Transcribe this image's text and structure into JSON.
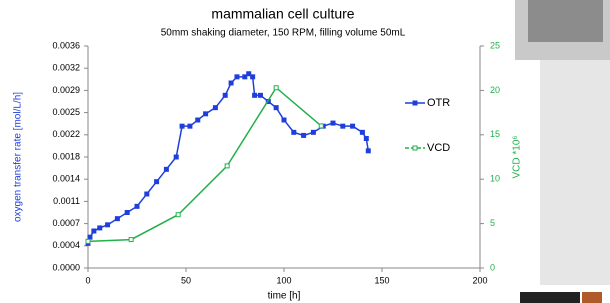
{
  "chart_data": {
    "type": "line",
    "title": "mammalian cell culture",
    "subtitle": "50mm shaking diameter, 150 RPM, filling volume 50mL",
    "x_label": "time [h]",
    "y_label": "oxygen transfer rate  [mol/L/h]",
    "y2_label": "VCD *10⁶",
    "xlim": [
      0,
      200
    ],
    "xticks": [
      0,
      50,
      100,
      150,
      200
    ],
    "ylim": [
      0,
      0.0036
    ],
    "yticks": [
      {
        "value": 0,
        "label": "0.0000"
      },
      {
        "value": 0.00036,
        "label": "0.0004"
      },
      {
        "value": 0.00072,
        "label": "0.0007"
      },
      {
        "value": 0.00108,
        "label": "0.0011"
      },
      {
        "value": 0.00144,
        "label": "0.0014"
      },
      {
        "value": 0.0018,
        "label": "0.0018"
      },
      {
        "value": 0.00216,
        "label": "0.0022"
      },
      {
        "value": 0.00252,
        "label": "0.0025"
      },
      {
        "value": 0.00288,
        "label": "0.0029"
      },
      {
        "value": 0.00324,
        "label": "0.0032"
      },
      {
        "value": 0.0036,
        "label": "0.0036"
      }
    ],
    "y2lim": [
      0,
      25
    ],
    "y2ticks": [
      0,
      5,
      10,
      15,
      20,
      25
    ],
    "legend": "right",
    "series": [
      {
        "name": "OTR",
        "color": "#1f3fdc",
        "x": [
          0,
          1,
          3,
          6,
          10,
          15,
          20,
          25,
          30,
          35,
          40,
          45,
          48,
          52,
          56,
          60,
          65,
          70,
          73,
          76,
          80,
          82,
          84,
          85,
          88,
          92,
          96,
          100,
          105,
          110,
          115,
          120,
          125,
          130,
          135,
          140,
          142,
          143
        ],
        "values": [
          0.0004,
          0.0005,
          0.0006,
          0.00065,
          0.0007,
          0.0008,
          0.0009,
          0.001,
          0.0012,
          0.0014,
          0.0016,
          0.0018,
          0.0023,
          0.0023,
          0.0024,
          0.0025,
          0.0026,
          0.0028,
          0.003,
          0.0031,
          0.0031,
          0.00315,
          0.0031,
          0.0028,
          0.0028,
          0.0027,
          0.0026,
          0.0024,
          0.0022,
          0.00215,
          0.0022,
          0.0023,
          0.00235,
          0.0023,
          0.0023,
          0.0022,
          0.0021,
          0.0019
        ]
      },
      {
        "name": "VCD",
        "color": "#22b04b",
        "axis": "y2",
        "x": [
          0,
          22,
          46,
          71,
          96,
          119
        ],
        "values": [
          3,
          3.2,
          6,
          11.5,
          20.3,
          16
        ]
      }
    ]
  }
}
